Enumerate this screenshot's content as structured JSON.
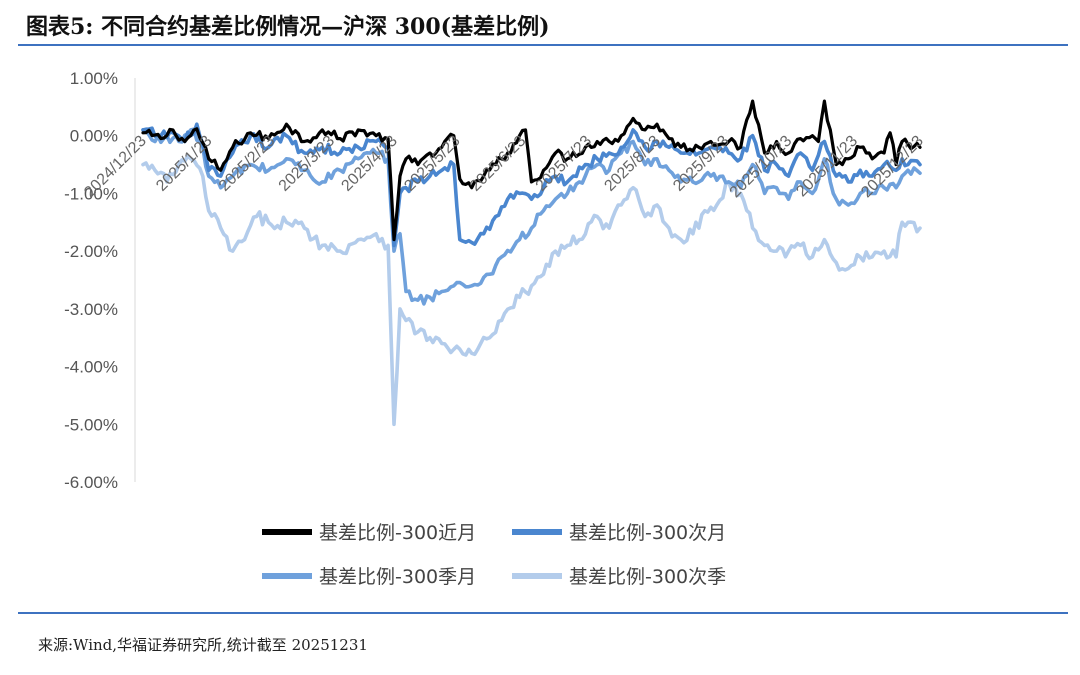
{
  "title": "图表5:  不同合约基差比例情况—沪深 300(基差比例)",
  "source": "来源:Wind,华福证券研究所,统计截至 20251231",
  "chart_data": {
    "type": "line",
    "title": "图表5:  不同合约基差比例情况—沪深 300(基差比例)",
    "xlabel": "",
    "ylabel": "",
    "ylim": [
      -6,
      1
    ],
    "y_tick_values": [
      1,
      0,
      -1,
      -2,
      -3,
      -4,
      -5,
      -6
    ],
    "y_tick_labels": [
      "1.00%",
      "0.00%",
      "-1.00%",
      "-2.00%",
      "-3.00%",
      "-4.00%",
      "-5.00%",
      "-6.00%"
    ],
    "x_range": [
      0,
      260
    ],
    "x_tick_labels": [
      "2024/12/23",
      "2025/1/23",
      "2025/2/23",
      "2025/3/23",
      "2025/4/23",
      "2025/5/23",
      "2025/6/23",
      "2025/7/23",
      "2025/8/23",
      "2025/9/23",
      "2025/10/23",
      "2025/11/23",
      "2025/12/23"
    ],
    "x_tick_positions": [
      0,
      22,
      43,
      63,
      84,
      105,
      127,
      149,
      172,
      195,
      216,
      238,
      260
    ],
    "legend_position": "bottom",
    "grid": false,
    "series": [
      {
        "name": "基差比例-300近月",
        "color": "#000000",
        "anchors": [
          [
            0,
            0.05
          ],
          [
            6,
            -0.05
          ],
          [
            10,
            0.1
          ],
          [
            14,
            -0.1
          ],
          [
            18,
            0.12
          ],
          [
            22,
            -0.4
          ],
          [
            26,
            -0.6
          ],
          [
            30,
            -0.2
          ],
          [
            36,
            0.05
          ],
          [
            42,
            -0.05
          ],
          [
            48,
            0.2
          ],
          [
            54,
            -0.1
          ],
          [
            60,
            0.1
          ],
          [
            66,
            -0.05
          ],
          [
            72,
            0.1
          ],
          [
            78,
            0.0
          ],
          [
            82,
            -0.05
          ],
          [
            84,
            -1.8
          ],
          [
            86,
            -0.7
          ],
          [
            88,
            -0.4
          ],
          [
            92,
            -0.5
          ],
          [
            96,
            -0.3
          ],
          [
            100,
            -0.2
          ],
          [
            104,
            0.0
          ],
          [
            106,
            -0.75
          ],
          [
            110,
            -0.9
          ],
          [
            114,
            -0.7
          ],
          [
            118,
            -0.5
          ],
          [
            122,
            -0.3
          ],
          [
            126,
            0.0
          ],
          [
            128,
            0.1
          ],
          [
            130,
            -0.8
          ],
          [
            134,
            -0.6
          ],
          [
            138,
            -0.3
          ],
          [
            142,
            -0.4
          ],
          [
            148,
            -0.2
          ],
          [
            152,
            -0.1
          ],
          [
            156,
            -0.1
          ],
          [
            160,
            0.0
          ],
          [
            164,
            0.3
          ],
          [
            168,
            0.1
          ],
          [
            172,
            0.2
          ],
          [
            176,
            -0.05
          ],
          [
            180,
            -0.2
          ],
          [
            186,
            -0.2
          ],
          [
            190,
            -0.1
          ],
          [
            196,
            -0.1
          ],
          [
            200,
            -0.2
          ],
          [
            204,
            0.6
          ],
          [
            208,
            -0.3
          ],
          [
            212,
            -0.1
          ],
          [
            216,
            -0.3
          ],
          [
            220,
            -0.05
          ],
          [
            224,
            0.0
          ],
          [
            226,
            -0.1
          ],
          [
            228,
            0.6
          ],
          [
            232,
            -0.5
          ],
          [
            236,
            -0.4
          ],
          [
            240,
            -0.2
          ],
          [
            244,
            -0.4
          ],
          [
            248,
            -0.3
          ],
          [
            250,
            0.05
          ],
          [
            252,
            -0.5
          ],
          [
            254,
            -0.1
          ],
          [
            256,
            -0.15
          ],
          [
            260,
            -0.2
          ]
        ]
      },
      {
        "name": "基差比例-300次月",
        "color": "#4a86cf",
        "anchors": [
          [
            0,
            0.1
          ],
          [
            6,
            0.0
          ],
          [
            10,
            0.05
          ],
          [
            14,
            -0.1
          ],
          [
            18,
            0.2
          ],
          [
            22,
            -0.6
          ],
          [
            26,
            -0.7
          ],
          [
            30,
            -0.3
          ],
          [
            36,
            0.0
          ],
          [
            42,
            -0.2
          ],
          [
            48,
            0.0
          ],
          [
            54,
            -0.3
          ],
          [
            60,
            -0.2
          ],
          [
            66,
            -0.3
          ],
          [
            72,
            -0.2
          ],
          [
            78,
            -0.1
          ],
          [
            82,
            -0.2
          ],
          [
            84,
            -1.9
          ],
          [
            86,
            -1.0
          ],
          [
            88,
            -0.9
          ],
          [
            92,
            -0.8
          ],
          [
            96,
            -0.7
          ],
          [
            100,
            -0.6
          ],
          [
            104,
            -0.5
          ],
          [
            106,
            -1.8
          ],
          [
            110,
            -1.85
          ],
          [
            114,
            -1.7
          ],
          [
            118,
            -1.4
          ],
          [
            122,
            -1.1
          ],
          [
            126,
            -1.0
          ],
          [
            130,
            -1.1
          ],
          [
            134,
            -0.9
          ],
          [
            138,
            -0.7
          ],
          [
            142,
            -0.8
          ],
          [
            148,
            -0.5
          ],
          [
            152,
            -0.4
          ],
          [
            156,
            -0.3
          ],
          [
            160,
            -0.2
          ],
          [
            164,
            0.1
          ],
          [
            168,
            -0.2
          ],
          [
            172,
            -0.1
          ],
          [
            176,
            -0.2
          ],
          [
            180,
            -0.3
          ],
          [
            186,
            -0.3
          ],
          [
            190,
            -0.2
          ],
          [
            196,
            -0.3
          ],
          [
            200,
            -0.4
          ],
          [
            204,
            0.0
          ],
          [
            208,
            -0.6
          ],
          [
            212,
            -0.5
          ],
          [
            216,
            -0.7
          ],
          [
            220,
            -0.3
          ],
          [
            224,
            -0.6
          ],
          [
            228,
            -0.1
          ],
          [
            232,
            -0.7
          ],
          [
            236,
            -0.8
          ],
          [
            240,
            -0.6
          ],
          [
            244,
            -0.7
          ],
          [
            248,
            -0.5
          ],
          [
            252,
            -0.6
          ],
          [
            254,
            -0.4
          ],
          [
            256,
            -0.5
          ],
          [
            260,
            -0.5
          ]
        ]
      },
      {
        "name": "基差比例-300季月",
        "color": "#6fa1dc",
        "anchors": [
          [
            0,
            0.1
          ],
          [
            4,
            -0.1
          ],
          [
            8,
            0.0
          ],
          [
            12,
            -0.1
          ],
          [
            16,
            0.1
          ],
          [
            20,
            -0.2
          ],
          [
            22,
            -0.7
          ],
          [
            26,
            -0.9
          ],
          [
            30,
            -0.7
          ],
          [
            36,
            -0.5
          ],
          [
            42,
            -0.6
          ],
          [
            48,
            -0.4
          ],
          [
            54,
            -0.6
          ],
          [
            60,
            -0.8
          ],
          [
            66,
            -0.6
          ],
          [
            72,
            -0.4
          ],
          [
            78,
            -0.3
          ],
          [
            82,
            -0.4
          ],
          [
            84,
            -2.0
          ],
          [
            86,
            -1.7
          ],
          [
            88,
            -2.7
          ],
          [
            92,
            -2.85
          ],
          [
            96,
            -2.8
          ],
          [
            100,
            -2.7
          ],
          [
            104,
            -2.6
          ],
          [
            110,
            -2.6
          ],
          [
            116,
            -2.4
          ],
          [
            120,
            -2.1
          ],
          [
            126,
            -1.8
          ],
          [
            130,
            -1.6
          ],
          [
            134,
            -1.3
          ],
          [
            138,
            -1.1
          ],
          [
            142,
            -1.0
          ],
          [
            146,
            -0.8
          ],
          [
            152,
            -0.5
          ],
          [
            156,
            -0.6
          ],
          [
            160,
            -0.3
          ],
          [
            164,
            -0.1
          ],
          [
            168,
            -0.5
          ],
          [
            172,
            -0.4
          ],
          [
            176,
            -0.6
          ],
          [
            180,
            -0.8
          ],
          [
            186,
            -0.8
          ],
          [
            190,
            -0.7
          ],
          [
            196,
            -0.8
          ],
          [
            200,
            -0.9
          ],
          [
            204,
            -0.5
          ],
          [
            208,
            -1.0
          ],
          [
            212,
            -0.9
          ],
          [
            216,
            -1.1
          ],
          [
            220,
            -0.8
          ],
          [
            224,
            -1.0
          ],
          [
            228,
            -0.4
          ],
          [
            232,
            -1.1
          ],
          [
            236,
            -1.2
          ],
          [
            240,
            -1.0
          ],
          [
            244,
            -1.0
          ],
          [
            248,
            -0.9
          ],
          [
            252,
            -0.9
          ],
          [
            254,
            -0.7
          ],
          [
            256,
            -0.6
          ],
          [
            260,
            -0.65
          ]
        ]
      },
      {
        "name": "基差比例-300次季",
        "color": "#b3cceb",
        "anchors": [
          [
            0,
            -0.5
          ],
          [
            4,
            -0.6
          ],
          [
            8,
            -0.8
          ],
          [
            12,
            -0.5
          ],
          [
            16,
            -0.4
          ],
          [
            20,
            -0.7
          ],
          [
            22,
            -1.3
          ],
          [
            26,
            -1.6
          ],
          [
            30,
            -2.0
          ],
          [
            34,
            -1.8
          ],
          [
            38,
            -1.4
          ],
          [
            42,
            -1.5
          ],
          [
            48,
            -1.5
          ],
          [
            54,
            -1.6
          ],
          [
            60,
            -1.9
          ],
          [
            66,
            -2.0
          ],
          [
            72,
            -1.8
          ],
          [
            78,
            -1.7
          ],
          [
            82,
            -1.9
          ],
          [
            84,
            -5.0
          ],
          [
            86,
            -3.0
          ],
          [
            88,
            -3.2
          ],
          [
            92,
            -3.4
          ],
          [
            96,
            -3.5
          ],
          [
            100,
            -3.6
          ],
          [
            104,
            -3.7
          ],
          [
            108,
            -3.8
          ],
          [
            112,
            -3.7
          ],
          [
            116,
            -3.5
          ],
          [
            120,
            -3.2
          ],
          [
            126,
            -2.8
          ],
          [
            130,
            -2.6
          ],
          [
            134,
            -2.4
          ],
          [
            138,
            -2.0
          ],
          [
            142,
            -1.9
          ],
          [
            146,
            -1.8
          ],
          [
            152,
            -1.4
          ],
          [
            156,
            -1.6
          ],
          [
            160,
            -1.2
          ],
          [
            164,
            -0.9
          ],
          [
            168,
            -1.4
          ],
          [
            172,
            -1.2
          ],
          [
            176,
            -1.6
          ],
          [
            180,
            -1.8
          ],
          [
            184,
            -1.7
          ],
          [
            188,
            -1.3
          ],
          [
            192,
            -1.2
          ],
          [
            196,
            -0.8
          ],
          [
            200,
            -1.0
          ],
          [
            204,
            -1.6
          ],
          [
            208,
            -1.9
          ],
          [
            212,
            -2.0
          ],
          [
            216,
            -2.0
          ],
          [
            220,
            -1.9
          ],
          [
            224,
            -2.1
          ],
          [
            228,
            -1.8
          ],
          [
            232,
            -2.2
          ],
          [
            236,
            -2.3
          ],
          [
            240,
            -2.1
          ],
          [
            244,
            -2.1
          ],
          [
            248,
            -2.0
          ],
          [
            252,
            -2.1
          ],
          [
            254,
            -1.5
          ],
          [
            256,
            -1.5
          ],
          [
            260,
            -1.6
          ]
        ]
      }
    ]
  }
}
